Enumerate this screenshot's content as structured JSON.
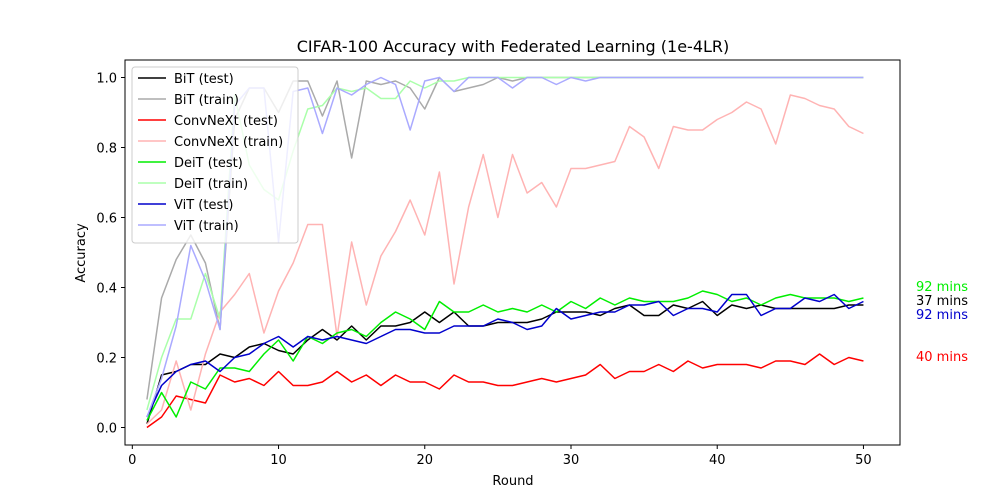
{
  "chart_data": {
    "type": "line",
    "title": "CIFAR-100 Accuracy with Federated Learning (1e-4LR)",
    "xlabel": "Round",
    "ylabel": "Accuracy",
    "xlim": [
      -0.5,
      52.5
    ],
    "ylim": [
      -0.05,
      1.05
    ],
    "xticks": [
      0,
      10,
      20,
      30,
      40,
      50
    ],
    "yticks": [
      0.0,
      0.2,
      0.4,
      0.6,
      0.8,
      1.0
    ],
    "legend_position": "top-left",
    "grid": false,
    "x": [
      1,
      2,
      3,
      4,
      5,
      6,
      7,
      8,
      9,
      10,
      11,
      12,
      13,
      14,
      15,
      16,
      17,
      18,
      19,
      20,
      21,
      22,
      23,
      24,
      25,
      26,
      27,
      28,
      29,
      30,
      31,
      32,
      33,
      34,
      35,
      36,
      37,
      38,
      39,
      40,
      41,
      42,
      43,
      44,
      45,
      46,
      47,
      48,
      49,
      50
    ],
    "series": [
      {
        "name": "BiT (test)",
        "color": "#000000",
        "values": [
          0.01,
          0.15,
          0.16,
          0.18,
          0.18,
          0.21,
          0.2,
          0.23,
          0.24,
          0.22,
          0.21,
          0.25,
          0.28,
          0.25,
          0.29,
          0.25,
          0.29,
          0.29,
          0.3,
          0.33,
          0.3,
          0.33,
          0.29,
          0.29,
          0.3,
          0.3,
          0.3,
          0.31,
          0.33,
          0.33,
          0.33,
          0.32,
          0.34,
          0.35,
          0.32,
          0.32,
          0.35,
          0.34,
          0.36,
          0.32,
          0.35,
          0.34,
          0.35,
          0.34,
          0.34,
          0.34,
          0.34,
          0.34,
          0.35,
          0.35
        ]
      },
      {
        "name": "BiT (train)",
        "color": "#aaaaaa",
        "values": [
          0.08,
          0.37,
          0.48,
          0.55,
          0.47,
          0.28,
          0.88,
          0.97,
          0.97,
          0.9,
          0.99,
          0.99,
          0.89,
          0.99,
          0.77,
          0.99,
          0.98,
          0.99,
          0.97,
          0.91,
          1.0,
          0.96,
          0.97,
          0.98,
          1.0,
          0.99,
          1.0,
          1.0,
          1.0,
          1.0,
          1.0,
          1.0,
          1.0,
          1.0,
          1.0,
          1.0,
          1.0,
          1.0,
          1.0,
          1.0,
          1.0,
          1.0,
          1.0,
          1.0,
          1.0,
          1.0,
          1.0,
          1.0,
          1.0,
          1.0
        ]
      },
      {
        "name": "ConvNeXt (test)",
        "color": "#ff0000",
        "values": [
          0.0,
          0.03,
          0.09,
          0.08,
          0.07,
          0.15,
          0.13,
          0.14,
          0.12,
          0.16,
          0.12,
          0.12,
          0.13,
          0.16,
          0.13,
          0.15,
          0.12,
          0.15,
          0.13,
          0.13,
          0.11,
          0.15,
          0.13,
          0.13,
          0.12,
          0.12,
          0.13,
          0.14,
          0.13,
          0.14,
          0.15,
          0.18,
          0.14,
          0.16,
          0.16,
          0.18,
          0.16,
          0.19,
          0.17,
          0.18,
          0.18,
          0.18,
          0.17,
          0.19,
          0.19,
          0.18,
          0.21,
          0.18,
          0.2,
          0.19
        ]
      },
      {
        "name": "ConvNeXt (train)",
        "color": "#ffb3b3",
        "values": [
          0.01,
          0.05,
          0.19,
          0.05,
          0.21,
          0.33,
          0.38,
          0.44,
          0.27,
          0.39,
          0.47,
          0.58,
          0.58,
          0.26,
          0.53,
          0.35,
          0.49,
          0.56,
          0.65,
          0.55,
          0.73,
          0.41,
          0.63,
          0.78,
          0.6,
          0.78,
          0.67,
          0.7,
          0.63,
          0.74,
          0.74,
          0.75,
          0.76,
          0.86,
          0.83,
          0.74,
          0.86,
          0.85,
          0.85,
          0.88,
          0.9,
          0.93,
          0.91,
          0.81,
          0.95,
          0.94,
          0.92,
          0.91,
          0.86,
          0.84
        ]
      },
      {
        "name": "DeiT (test)",
        "color": "#00ee00",
        "values": [
          0.02,
          0.1,
          0.03,
          0.13,
          0.11,
          0.17,
          0.17,
          0.16,
          0.21,
          0.25,
          0.19,
          0.26,
          0.24,
          0.27,
          0.28,
          0.26,
          0.3,
          0.33,
          0.31,
          0.28,
          0.36,
          0.33,
          0.33,
          0.35,
          0.33,
          0.34,
          0.33,
          0.35,
          0.33,
          0.36,
          0.34,
          0.37,
          0.35,
          0.37,
          0.36,
          0.36,
          0.36,
          0.37,
          0.39,
          0.38,
          0.36,
          0.37,
          0.35,
          0.37,
          0.38,
          0.37,
          0.37,
          0.37,
          0.36,
          0.37
        ]
      },
      {
        "name": "DeiT (train)",
        "color": "#aaffaa",
        "values": [
          0.05,
          0.2,
          0.31,
          0.31,
          0.44,
          0.31,
          0.95,
          0.75,
          0.68,
          0.65,
          0.79,
          0.91,
          0.92,
          0.97,
          0.96,
          0.97,
          0.94,
          0.94,
          0.99,
          0.97,
          0.99,
          0.99,
          1.0,
          1.0,
          1.0,
          1.0,
          1.0,
          1.0,
          1.0,
          1.0,
          1.0,
          1.0,
          1.0,
          1.0,
          1.0,
          1.0,
          1.0,
          1.0,
          1.0,
          1.0,
          1.0,
          1.0,
          1.0,
          1.0,
          1.0,
          1.0,
          1.0,
          1.0,
          1.0,
          1.0
        ]
      },
      {
        "name": "ViT (test)",
        "color": "#0000cc",
        "values": [
          0.03,
          0.12,
          0.16,
          0.18,
          0.19,
          0.16,
          0.2,
          0.21,
          0.24,
          0.26,
          0.23,
          0.26,
          0.25,
          0.26,
          0.25,
          0.24,
          0.26,
          0.28,
          0.28,
          0.27,
          0.27,
          0.29,
          0.29,
          0.29,
          0.31,
          0.3,
          0.28,
          0.29,
          0.34,
          0.31,
          0.32,
          0.33,
          0.33,
          0.35,
          0.35,
          0.36,
          0.32,
          0.34,
          0.34,
          0.33,
          0.38,
          0.38,
          0.32,
          0.34,
          0.34,
          0.37,
          0.36,
          0.38,
          0.34,
          0.36
        ]
      },
      {
        "name": "ViT (train)",
        "color": "#aaaaff",
        "values": [
          0.03,
          0.14,
          0.29,
          0.52,
          0.42,
          0.28,
          0.92,
          0.97,
          0.97,
          0.53,
          0.96,
          0.97,
          0.84,
          0.97,
          0.95,
          0.98,
          1.0,
          0.98,
          0.85,
          0.99,
          1.0,
          0.96,
          1.0,
          1.0,
          1.0,
          0.97,
          1.0,
          1.0,
          0.98,
          1.0,
          0.99,
          1.0,
          1.0,
          1.0,
          1.0,
          1.0,
          1.0,
          1.0,
          1.0,
          1.0,
          1.0,
          1.0,
          1.0,
          1.0,
          1.0,
          1.0,
          1.0,
          1.0,
          1.0,
          1.0
        ]
      }
    ],
    "annotations": [
      {
        "text": "92 mins",
        "color": "#00ee00",
        "y": 0.4
      },
      {
        "text": "37 mins",
        "color": "#000000",
        "y": 0.36
      },
      {
        "text": "92 mins",
        "color": "#0000cc",
        "y": 0.32
      },
      {
        "text": "40 mins",
        "color": "#ff0000",
        "y": 0.2
      }
    ]
  }
}
